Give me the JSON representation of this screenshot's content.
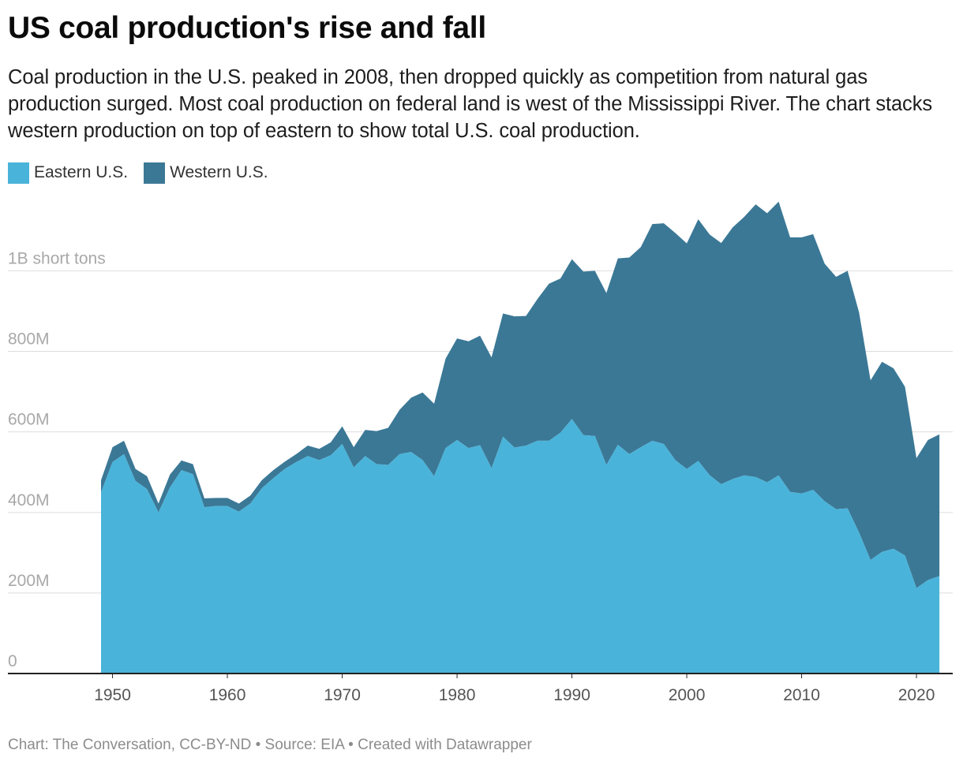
{
  "title": "US coal production's rise and fall",
  "subtitle": "Coal production in the U.S. peaked in 2008, then dropped quickly as competition from natural gas production surged. Most coal production on federal land is west of the Mississippi River. The chart stacks western production on top of eastern to show total U.S. coal production.",
  "footer": "Chart: The Conversation, CC-BY-ND • Source: EIA • Created with Datawrapper",
  "colors": {
    "eastern": "#4ab3d9",
    "western": "#3b7896",
    "grid": "#dddddd",
    "axis_label": "#a8a8a8",
    "year_label": "#555555"
  },
  "chart_data": {
    "type": "area",
    "stacked": true,
    "title": "US coal production's rise and fall",
    "x": [
      1949,
      1950,
      1951,
      1952,
      1953,
      1954,
      1955,
      1956,
      1957,
      1958,
      1959,
      1960,
      1961,
      1962,
      1963,
      1964,
      1965,
      1966,
      1967,
      1968,
      1969,
      1970,
      1971,
      1972,
      1973,
      1974,
      1975,
      1976,
      1977,
      1978,
      1979,
      1980,
      1981,
      1982,
      1983,
      1984,
      1985,
      1986,
      1987,
      1988,
      1989,
      1990,
      1991,
      1992,
      1993,
      1994,
      1995,
      1996,
      1997,
      1998,
      1999,
      2000,
      2001,
      2002,
      2003,
      2004,
      2005,
      2006,
      2007,
      2008,
      2009,
      2010,
      2011,
      2012,
      2013,
      2014,
      2015,
      2016,
      2017,
      2018,
      2019,
      2020,
      2021,
      2022
    ],
    "series": [
      {
        "name": "Eastern U.S.",
        "color": "#4ab3d9",
        "values": [
          450,
          525,
          545,
          478,
          458,
          400,
          462,
          505,
          495,
          413,
          416,
          416,
          402,
          422,
          460,
          485,
          508,
          525,
          540,
          530,
          542,
          570,
          512,
          540,
          520,
          518,
          545,
          550,
          530,
          490,
          560,
          580,
          560,
          567,
          510,
          588,
          561,
          566,
          578,
          578,
          598,
          632,
          592,
          590,
          518,
          568,
          545,
          562,
          578,
          570,
          530,
          508,
          528,
          492,
          470,
          483,
          492,
          488,
          475,
          492,
          451,
          447,
          456,
          428,
          408,
          410,
          350,
          282,
          302,
          310,
          293,
          212,
          232,
          242
        ]
      },
      {
        "name": "Western U.S.",
        "color": "#3b7896",
        "values": [
          30,
          37,
          33,
          30,
          32,
          22,
          32,
          24,
          25,
          22,
          20,
          20,
          20,
          20,
          20,
          20,
          18,
          20,
          26,
          28,
          32,
          44,
          50,
          65,
          82,
          92,
          110,
          135,
          168,
          180,
          222,
          252,
          265,
          272,
          275,
          306,
          326,
          322,
          352,
          390,
          383,
          397,
          406,
          410,
          427,
          463,
          488,
          497,
          538,
          548,
          564,
          560,
          600,
          598,
          599,
          625,
          642,
          677,
          668,
          680,
          632,
          636,
          635,
          590,
          577,
          590,
          547,
          446,
          472,
          448,
          419,
          323,
          348,
          352
        ]
      }
    ],
    "ylabel": "",
    "y_tick_labels": [
      "0",
      "200M",
      "400M",
      "600M",
      "800M",
      "1B short tons"
    ],
    "y_ticks": [
      0,
      200,
      400,
      600,
      800,
      1000
    ],
    "ylim": [
      0,
      1200
    ],
    "y_unit": "million short tons",
    "x_tick_labels": [
      "1950",
      "1960",
      "1970",
      "1980",
      "1990",
      "2000",
      "2010",
      "2020"
    ],
    "x_ticks": [
      1950,
      1960,
      1970,
      1980,
      1990,
      2000,
      2010,
      2020
    ],
    "xlim": [
      1941,
      2025
    ],
    "grid": true,
    "legend_position": "top-left"
  }
}
